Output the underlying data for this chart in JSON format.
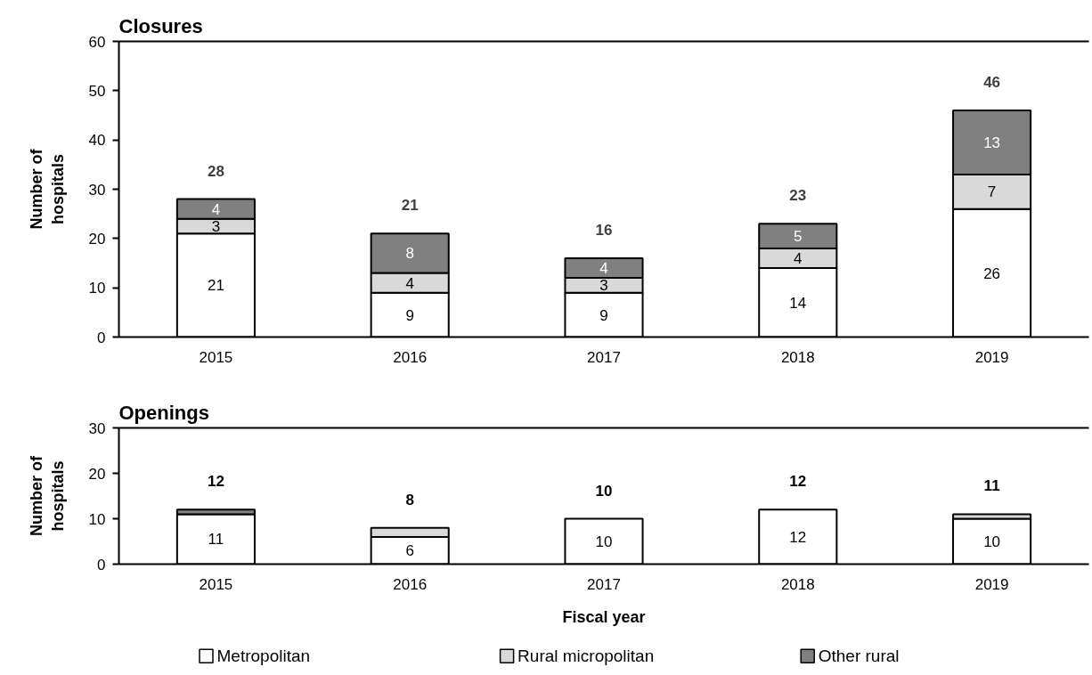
{
  "chart_data": [
    {
      "type": "bar",
      "title": "Closures",
      "ylabel": "Number of hospitals",
      "categories": [
        "2015",
        "2016",
        "2017",
        "2018",
        "2019"
      ],
      "stacked": true,
      "series": [
        {
          "color": "#ffffff",
          "values": [
            21,
            9,
            9,
            14,
            26
          ]
        },
        {
          "color": "#d9d9d9",
          "values": [
            3,
            4,
            3,
            4,
            7
          ]
        },
        {
          "color": "#808080",
          "values": [
            4,
            8,
            4,
            5,
            13
          ]
        }
      ],
      "ylim": [
        0,
        60
      ],
      "yticks": [
        0,
        10,
        20,
        30,
        40,
        50,
        60
      ],
      "data_labels": true,
      "totals": [
        "28",
        "21",
        "16",
        "23",
        "46"
      ]
    },
    {
      "type": "bar",
      "title": "Openings",
      "xlabel": "Fiscal year",
      "ylabel": "Number of hospitals",
      "categories": [
        "2015",
        "2016",
        "2017",
        "2018",
        "2019"
      ],
      "stacked": true,
      "series": [
        {
          "name": "Metropolitan",
          "color": "#ffffff",
          "values": [
            11,
            6,
            10,
            12,
            10
          ],
          "value_labels": [
            "11",
            "6",
            "10",
            "12",
            "10"
          ]
        },
        {
          "name": "Rural micropolitan",
          "color": "#d9d9d9",
          "values": [
            0,
            2,
            0,
            0,
            1
          ]
        },
        {
          "name": "Other rural",
          "color": "#808080",
          "values": [
            1,
            0,
            0,
            0,
            0
          ]
        }
      ],
      "ylim": [
        0,
        30
      ],
      "yticks": [
        0,
        10,
        20,
        30
      ],
      "totals": [
        "12",
        "8",
        "10",
        "12",
        "11"
      ],
      "legend": "bottom"
    }
  ]
}
